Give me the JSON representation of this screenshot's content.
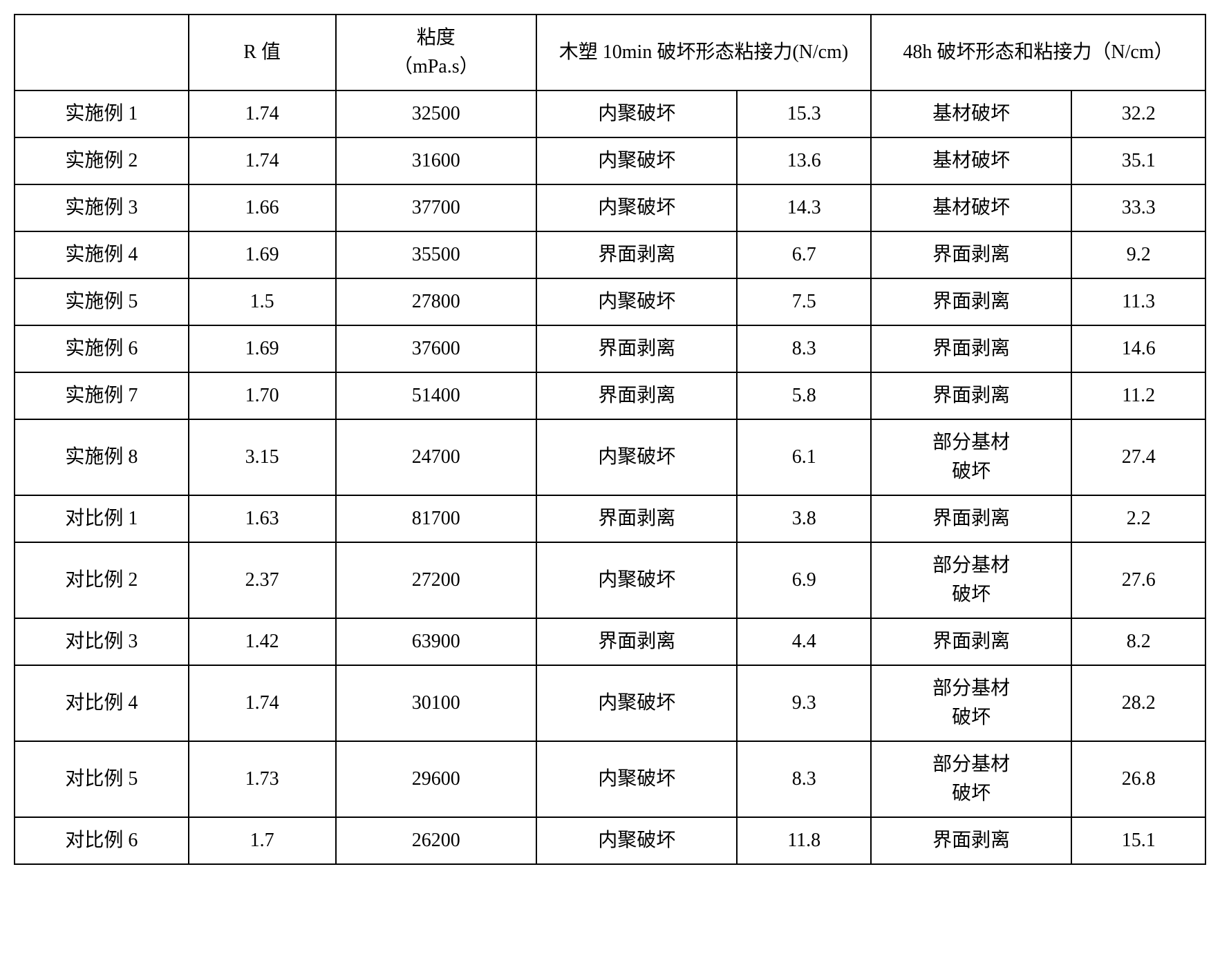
{
  "table": {
    "headers": {
      "label": "",
      "r_value": "R 值",
      "viscosity": "粘度\n（mPa.s）",
      "wood_10min": "木塑 10min 破坏形态粘接力(N/cm)",
      "h48": "48h 破坏形态和粘接力（N/cm）"
    },
    "columns": [
      "label",
      "r_value",
      "viscosity",
      "type_10min",
      "val_10min",
      "type_48h",
      "val_48h"
    ],
    "rows": [
      {
        "label": "实施例 1",
        "r_value": "1.74",
        "viscosity": "32500",
        "type_10min": "内聚破坏",
        "val_10min": "15.3",
        "type_48h": "基材破坏",
        "val_48h": "32.2"
      },
      {
        "label": "实施例 2",
        "r_value": "1.74",
        "viscosity": "31600",
        "type_10min": "内聚破坏",
        "val_10min": "13.6",
        "type_48h": "基材破坏",
        "val_48h": "35.1"
      },
      {
        "label": "实施例 3",
        "r_value": "1.66",
        "viscosity": "37700",
        "type_10min": "内聚破坏",
        "val_10min": "14.3",
        "type_48h": "基材破坏",
        "val_48h": "33.3"
      },
      {
        "label": "实施例 4",
        "r_value": "1.69",
        "viscosity": "35500",
        "type_10min": "界面剥离",
        "val_10min": "6.7",
        "type_48h": "界面剥离",
        "val_48h": "9.2"
      },
      {
        "label": "实施例 5",
        "r_value": "1.5",
        "viscosity": "27800",
        "type_10min": "内聚破坏",
        "val_10min": "7.5",
        "type_48h": "界面剥离",
        "val_48h": "11.3"
      },
      {
        "label": "实施例 6",
        "r_value": "1.69",
        "viscosity": "37600",
        "type_10min": "界面剥离",
        "val_10min": "8.3",
        "type_48h": "界面剥离",
        "val_48h": "14.6"
      },
      {
        "label": "实施例 7",
        "r_value": "1.70",
        "viscosity": "51400",
        "type_10min": "界面剥离",
        "val_10min": "5.8",
        "type_48h": "界面剥离",
        "val_48h": "11.2"
      },
      {
        "label": "实施例 8",
        "r_value": "3.15",
        "viscosity": "24700",
        "type_10min": "内聚破坏",
        "val_10min": "6.1",
        "type_48h": "部分基材破坏",
        "val_48h": "27.4"
      },
      {
        "label": "对比例 1",
        "r_value": "1.63",
        "viscosity": "81700",
        "type_10min": "界面剥离",
        "val_10min": "3.8",
        "type_48h": "界面剥离",
        "val_48h": "2.2"
      },
      {
        "label": "对比例 2",
        "r_value": "2.37",
        "viscosity": "27200",
        "type_10min": "内聚破坏",
        "val_10min": "6.9",
        "type_48h": "部分基材破坏",
        "val_48h": "27.6"
      },
      {
        "label": "对比例 3",
        "r_value": "1.42",
        "viscosity": "63900",
        "type_10min": "界面剥离",
        "val_10min": "4.4",
        "type_48h": "界面剥离",
        "val_48h": "8.2"
      },
      {
        "label": "对比例 4",
        "r_value": "1.74",
        "viscosity": "30100",
        "type_10min": "内聚破坏",
        "val_10min": "9.3",
        "type_48h": "部分基材破坏",
        "val_48h": "28.2"
      },
      {
        "label": "对比例 5",
        "r_value": "1.73",
        "viscosity": "29600",
        "type_10min": "内聚破坏",
        "val_10min": "8.3",
        "type_48h": "部分基材破坏",
        "val_48h": "26.8"
      },
      {
        "label": "对比例 6",
        "r_value": "1.7",
        "viscosity": "26200",
        "type_10min": "内聚破坏",
        "val_10min": "11.8",
        "type_48h": "界面剥离",
        "val_48h": "15.1"
      }
    ]
  },
  "styling": {
    "border_color": "#000000",
    "border_width": 2,
    "background_color": "#ffffff",
    "text_color": "#000000",
    "font_family": "SimSun",
    "font_size": 28,
    "cell_padding": 12,
    "text_align": "center"
  }
}
